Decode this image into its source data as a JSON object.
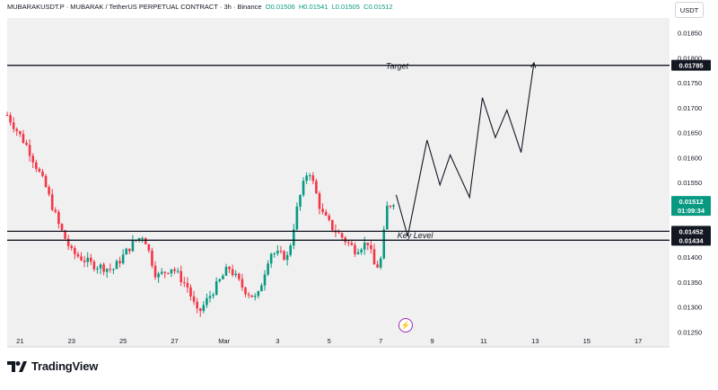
{
  "header": {
    "symbol": "MUBARAKUSDT.P · MUBARAK / TetherUS PERPETUAL CONTRACT · 3h · Binance",
    "o_label": "O",
    "o_value": "0.01506",
    "h_label": "H",
    "h_value": "0.01541",
    "l_label": "L",
    "l_value": "0.01505",
    "c_label": "C",
    "c_value": "0.01512"
  },
  "currency_button": "USDT",
  "brand": "TradingView",
  "colors": {
    "up": "#089981",
    "down": "#f23645",
    "bg_plot": "#f0f0f1",
    "axis_text": "#131722",
    "current_price_bg": "#089981",
    "level_bg": "#131722"
  },
  "icons": {
    "indicator": "lightning-bolt-icon",
    "logo": "tradingview-logo-icon"
  },
  "chart_data": {
    "type": "candlestick",
    "y_axis": {
      "ylim": [
        0.0122,
        0.0188
      ],
      "ticks": [
        "0.01850",
        "0.01800",
        "0.01750",
        "0.01700",
        "0.01650",
        "0.01600",
        "0.01550",
        "0.01400",
        "0.01350",
        "0.01300",
        "0.01250"
      ]
    },
    "x_axis": {
      "range_days": [
        20.5,
        17.8
      ],
      "ticks": [
        {
          "day": 21,
          "label": "21"
        },
        {
          "day": 23,
          "label": "23"
        },
        {
          "day": 25,
          "label": "25"
        },
        {
          "day": 27,
          "label": "27"
        },
        {
          "day": 28.92,
          "label": "Mar"
        },
        {
          "day": 31,
          "label": "3"
        },
        {
          "day": 33,
          "label": "5"
        },
        {
          "day": 35,
          "label": "7"
        },
        {
          "day": 37,
          "label": "9"
        },
        {
          "day": 39,
          "label": "11"
        },
        {
          "day": 41,
          "label": "13"
        },
        {
          "day": 43,
          "label": "15"
        },
        {
          "day": 45,
          "label": "17"
        }
      ]
    },
    "price_labels": {
      "target": "0.01785",
      "current": "0.01512",
      "countdown": "01:09:34",
      "key_upper": "0.01452",
      "key_lower": "0.01434"
    },
    "levels": [
      {
        "name": "target-line",
        "price": 0.01785
      },
      {
        "name": "key-level-upper",
        "price": 0.01452
      },
      {
        "name": "key-level-lower",
        "price": 0.01434
      }
    ],
    "annotations": [
      {
        "text": "Target",
        "day": 35.2,
        "price": 0.01778
      },
      {
        "text": "Key Level",
        "day": 35.65,
        "price": 0.01438
      }
    ],
    "projection": [
      {
        "day": 35.6,
        "price": 0.01525
      },
      {
        "day": 36.05,
        "price": 0.01442
      },
      {
        "day": 36.8,
        "price": 0.01635
      },
      {
        "day": 37.3,
        "price": 0.01545
      },
      {
        "day": 37.7,
        "price": 0.01605
      },
      {
        "day": 38.45,
        "price": 0.0152
      },
      {
        "day": 38.95,
        "price": 0.0172
      },
      {
        "day": 39.45,
        "price": 0.0164
      },
      {
        "day": 39.9,
        "price": 0.01695
      },
      {
        "day": 40.45,
        "price": 0.0161
      },
      {
        "day": 40.95,
        "price": 0.0179
      }
    ],
    "waypoints": [
      {
        "day": 20.5,
        "price": 0.01685
      },
      {
        "day": 21.3,
        "price": 0.0162
      },
      {
        "day": 22.0,
        "price": 0.0154
      },
      {
        "day": 22.5,
        "price": 0.01465
      },
      {
        "day": 23.0,
        "price": 0.0141
      },
      {
        "day": 23.8,
        "price": 0.01385
      },
      {
        "day": 24.6,
        "price": 0.01375
      },
      {
        "day": 25.4,
        "price": 0.0143
      },
      {
        "day": 25.8,
        "price": 0.01445
      },
      {
        "day": 26.3,
        "price": 0.0136
      },
      {
        "day": 26.9,
        "price": 0.0138
      },
      {
        "day": 27.5,
        "price": 0.0134
      },
      {
        "day": 27.9,
        "price": 0.01285
      },
      {
        "day": 28.4,
        "price": 0.01325
      },
      {
        "day": 29.1,
        "price": 0.0138
      },
      {
        "day": 29.7,
        "price": 0.01335
      },
      {
        "day": 30.2,
        "price": 0.01315
      },
      {
        "day": 30.7,
        "price": 0.0141
      },
      {
        "day": 31.4,
        "price": 0.014
      },
      {
        "day": 31.8,
        "price": 0.0151
      },
      {
        "day": 32.2,
        "price": 0.0158
      },
      {
        "day": 32.7,
        "price": 0.0149
      },
      {
        "day": 33.1,
        "price": 0.0146
      },
      {
        "day": 33.5,
        "price": 0.0144
      },
      {
        "day": 34.0,
        "price": 0.01415
      },
      {
        "day": 34.5,
        "price": 0.0143
      },
      {
        "day": 34.8,
        "price": 0.01375
      },
      {
        "day": 35.0,
        "price": 0.01395
      },
      {
        "day": 35.25,
        "price": 0.015
      },
      {
        "day": 35.5,
        "price": 0.01512
      }
    ]
  }
}
